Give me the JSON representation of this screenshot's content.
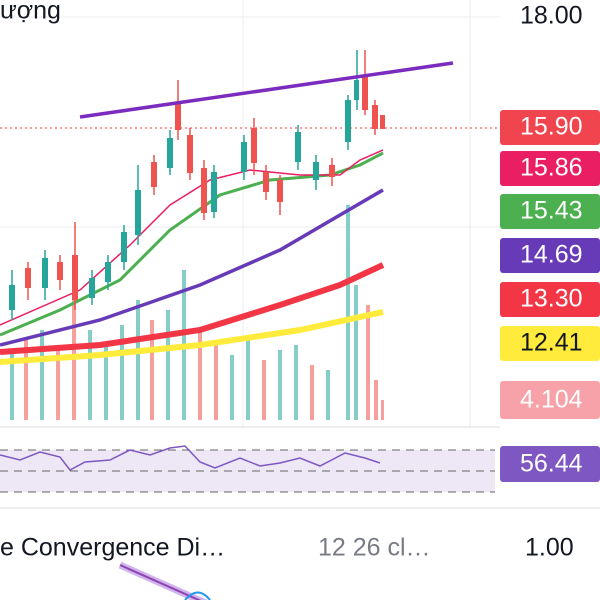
{
  "header": {
    "title": "ượng"
  },
  "price_axis": {
    "top": "18.00",
    "labels": [
      {
        "text": "15.90",
        "color": "#f0444f"
      },
      {
        "text": "15.86",
        "color": "#e91e63"
      },
      {
        "text": "15.43",
        "color": "#4caf50"
      },
      {
        "text": "14.69",
        "color": "#673ab7"
      },
      {
        "text": "13.30",
        "color": "#f23645"
      },
      {
        "text": "12.41",
        "color": "#ffeb3b"
      }
    ]
  },
  "volume_label": "4.104",
  "rsi_label": "56.44",
  "indicator": {
    "name": "e Convergence Di…",
    "params": "12 26 cl…",
    "axis_label": "1.00"
  }
}
